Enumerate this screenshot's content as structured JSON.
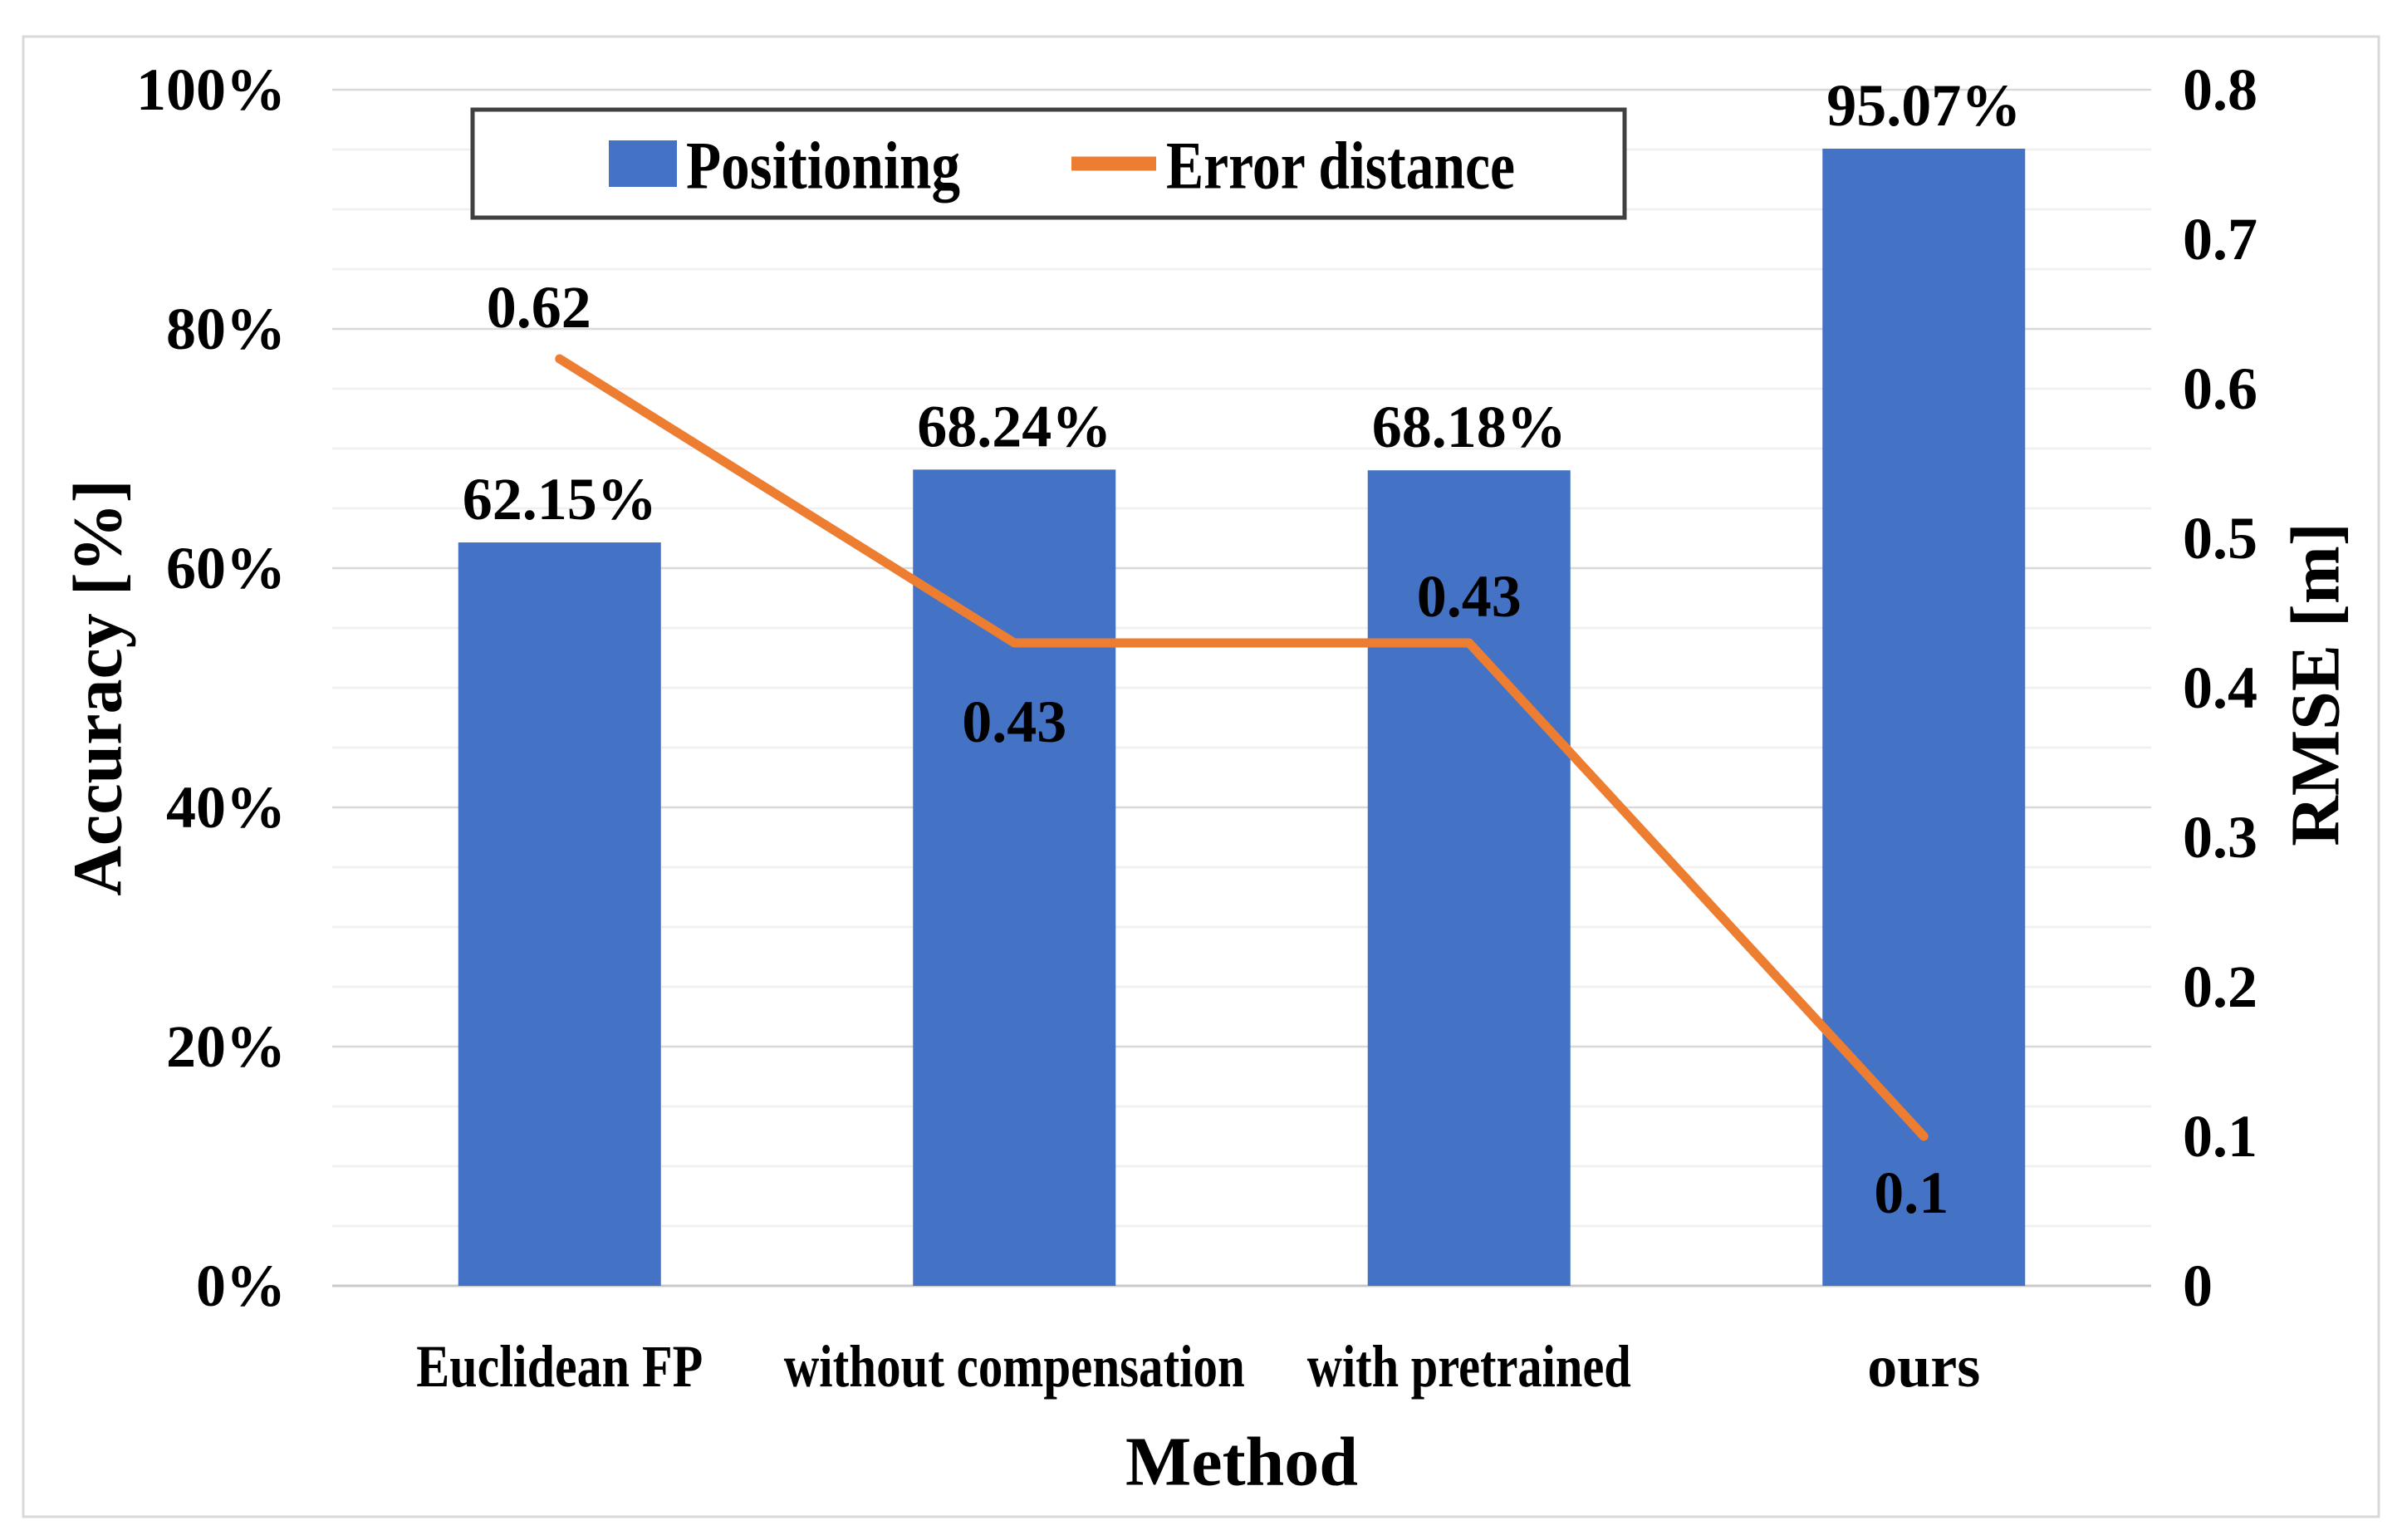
{
  "chart_data": {
    "type": "bar",
    "subtype": "combo-bar-line-dual-axis",
    "categories": [
      "Euclidean FP",
      "without compensation",
      "with pretrained",
      "ours"
    ],
    "series": [
      {
        "name": "Positioning",
        "kind": "bar",
        "axis": "left",
        "color": "#4472C4",
        "values": [
          62.15,
          68.24,
          68.18,
          95.07
        ],
        "labels": [
          "62.15%",
          "68.24%",
          "68.18%",
          "95.07%"
        ]
      },
      {
        "name": "Error distance",
        "kind": "line",
        "axis": "right",
        "color": "#ED7D31",
        "values": [
          0.62,
          0.43,
          0.43,
          0.1
        ],
        "labels": [
          "0.62",
          "0.43",
          "0.43",
          "0.1"
        ]
      }
    ],
    "left_axis": {
      "title": "Accuracy [%]",
      "min": 0,
      "max": 100,
      "major_step_percent": 20,
      "ticks": [
        "100%",
        "80%",
        "60%",
        "40%",
        "20%",
        "0%"
      ]
    },
    "right_axis": {
      "title": "RMSE [m]",
      "min": 0,
      "max": 0.8,
      "major_step": 0.1,
      "ticks": [
        "0.8",
        "0.7",
        "0.6",
        "0.5",
        "0.4",
        "0.3",
        "0.2",
        "0.1",
        "0"
      ]
    },
    "x_axis": {
      "title": "Method"
    },
    "legend": {
      "position": "top",
      "entries": [
        "Positioning",
        "Error distance"
      ]
    },
    "grid": true
  }
}
